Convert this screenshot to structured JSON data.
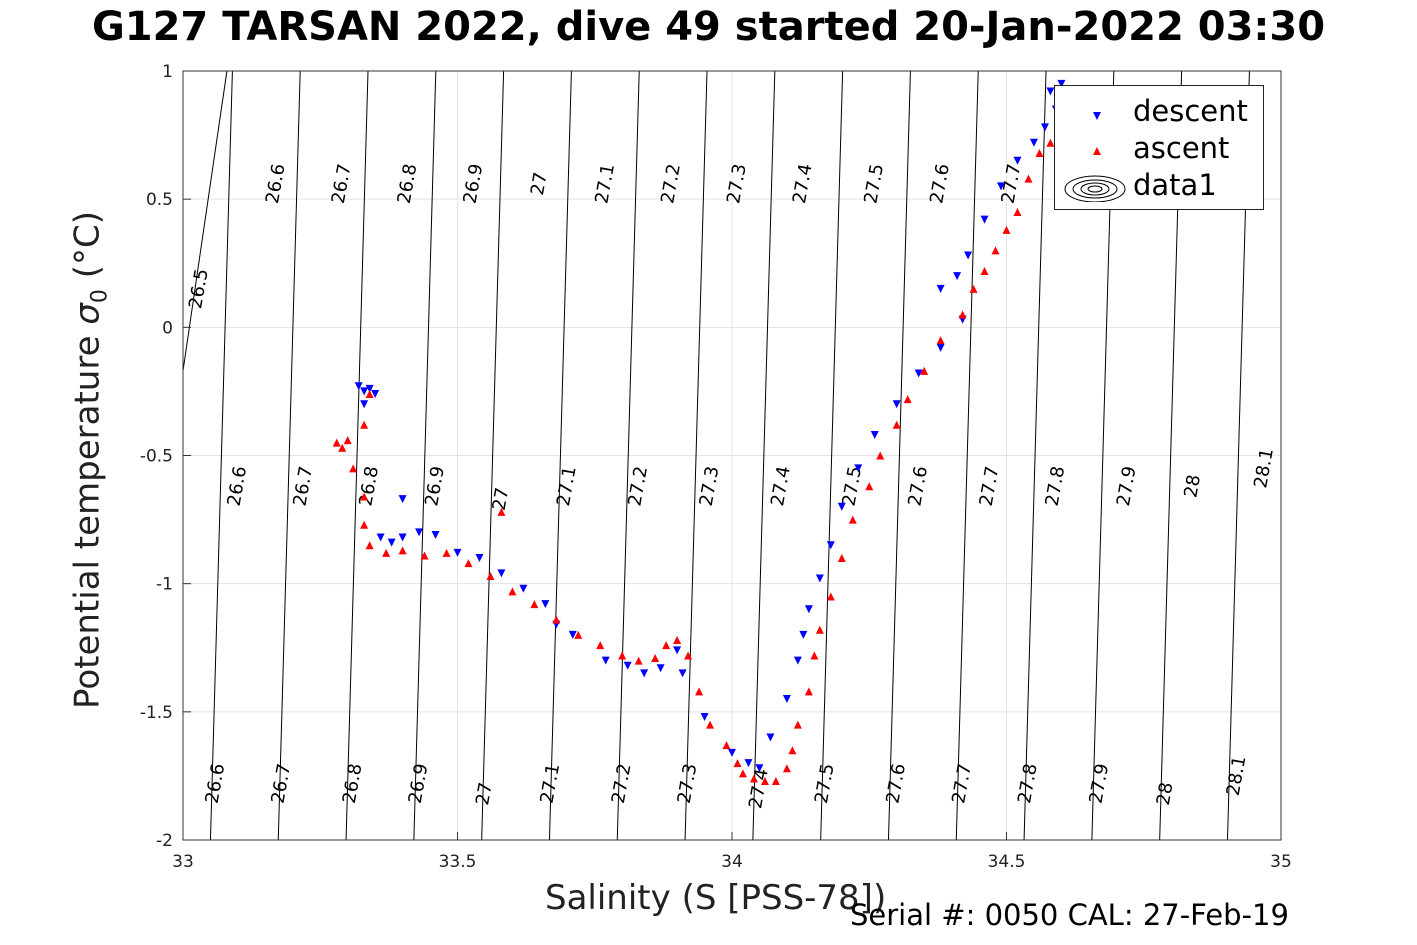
{
  "title": "G127 TARSAN 2022, dive 49 started 20-Jan-2022 03:30",
  "footer": "Serial #: 0050  CAL: 27-Feb-19",
  "chart_data": {
    "type": "scatter",
    "xlabel": "Salinity (S [PSS-78])",
    "ylabel_main": "Potential temperature ",
    "ylabel_sigma": "σ",
    "ylabel_sub": "0",
    "ylabel_unit": " (°C)",
    "xlim": [
      33,
      35
    ],
    "ylim": [
      -2,
      1
    ],
    "xticks": [
      "33",
      "33.5",
      "34",
      "34.5",
      "35"
    ],
    "yticks": [
      "-2",
      "-1.5",
      "-1",
      "-0.5",
      "0",
      "0.5",
      "1"
    ],
    "grid": true,
    "legend_position": "top-right",
    "legend": [
      {
        "label": "descent",
        "color": "#0000ff",
        "marker": "triangle-down"
      },
      {
        "label": "ascent",
        "color": "#ff0000",
        "marker": "triangle-up"
      },
      {
        "label": "data1",
        "color": "#000000",
        "marker": "contour"
      }
    ],
    "contour_levels": [
      "26.5",
      "26.6",
      "26.7",
      "26.8",
      "26.9",
      "27",
      "27.1",
      "27.2",
      "27.3",
      "27.4",
      "27.5",
      "27.6",
      "27.7",
      "27.8",
      "27.9",
      "28",
      "28.1"
    ],
    "contour_labels": [
      {
        "text": "26.5",
        "x": 33.03,
        "y": 0.15
      },
      {
        "text": "26.6",
        "x": 33.17,
        "y": 0.56
      },
      {
        "text": "26.7",
        "x": 33.29,
        "y": 0.56
      },
      {
        "text": "26.8",
        "x": 33.41,
        "y": 0.56
      },
      {
        "text": "26.9",
        "x": 33.53,
        "y": 0.56
      },
      {
        "text": "27",
        "x": 33.65,
        "y": 0.56
      },
      {
        "text": "27.1",
        "x": 33.77,
        "y": 0.56
      },
      {
        "text": "27.2",
        "x": 33.89,
        "y": 0.56
      },
      {
        "text": "27.3",
        "x": 34.01,
        "y": 0.56
      },
      {
        "text": "27.4",
        "x": 34.13,
        "y": 0.56
      },
      {
        "text": "27.5",
        "x": 34.26,
        "y": 0.56
      },
      {
        "text": "27.6",
        "x": 34.38,
        "y": 0.56
      },
      {
        "text": "27.7",
        "x": 34.51,
        "y": 0.56
      },
      {
        "text": "26.6",
        "x": 33.1,
        "y": -0.62
      },
      {
        "text": "26.7",
        "x": 33.22,
        "y": -0.62
      },
      {
        "text": "26.8",
        "x": 33.34,
        "y": -0.62
      },
      {
        "text": "26.9",
        "x": 33.46,
        "y": -0.62
      },
      {
        "text": "27",
        "x": 33.58,
        "y": -0.67
      },
      {
        "text": "27.1",
        "x": 33.7,
        "y": -0.62
      },
      {
        "text": "27.2",
        "x": 33.83,
        "y": -0.62
      },
      {
        "text": "27.3",
        "x": 33.96,
        "y": -0.62
      },
      {
        "text": "27.4",
        "x": 34.09,
        "y": -0.62
      },
      {
        "text": "27.5",
        "x": 34.22,
        "y": -0.62
      },
      {
        "text": "27.6",
        "x": 34.34,
        "y": -0.62
      },
      {
        "text": "27.7",
        "x": 34.47,
        "y": -0.62
      },
      {
        "text": "27.8",
        "x": 34.59,
        "y": -0.62
      },
      {
        "text": "27.9",
        "x": 34.72,
        "y": -0.62
      },
      {
        "text": "28",
        "x": 34.84,
        "y": -0.62
      },
      {
        "text": "28.1",
        "x": 34.97,
        "y": -0.55
      },
      {
        "text": "26.6",
        "x": 33.06,
        "y": -1.78
      },
      {
        "text": "26.7",
        "x": 33.18,
        "y": -1.78
      },
      {
        "text": "26.8",
        "x": 33.31,
        "y": -1.78
      },
      {
        "text": "26.9",
        "x": 33.43,
        "y": -1.78
      },
      {
        "text": "27",
        "x": 33.55,
        "y": -1.82
      },
      {
        "text": "27.1",
        "x": 33.67,
        "y": -1.78
      },
      {
        "text": "27.2",
        "x": 33.8,
        "y": -1.78
      },
      {
        "text": "27.3",
        "x": 33.92,
        "y": -1.78
      },
      {
        "text": "27.4",
        "x": 34.05,
        "y": -1.8
      },
      {
        "text": "27.5",
        "x": 34.17,
        "y": -1.78
      },
      {
        "text": "27.6",
        "x": 34.3,
        "y": -1.78
      },
      {
        "text": "27.7",
        "x": 34.42,
        "y": -1.78
      },
      {
        "text": "27.8",
        "x": 34.54,
        "y": -1.78
      },
      {
        "text": "27.9",
        "x": 34.67,
        "y": -1.78
      },
      {
        "text": "28",
        "x": 34.79,
        "y": -1.82
      },
      {
        "text": "28.1",
        "x": 34.92,
        "y": -1.75
      }
    ],
    "series": [
      {
        "name": "descent",
        "color": "#0000ff",
        "marker": "triangle-down",
        "points": [
          [
            33.32,
            -0.23
          ],
          [
            33.33,
            -0.25
          ],
          [
            33.34,
            -0.24
          ],
          [
            33.35,
            -0.26
          ],
          [
            33.33,
            -0.3
          ],
          [
            33.4,
            -0.67
          ],
          [
            33.36,
            -0.82
          ],
          [
            33.38,
            -0.84
          ],
          [
            33.4,
            -0.82
          ],
          [
            33.43,
            -0.8
          ],
          [
            33.46,
            -0.81
          ],
          [
            33.5,
            -0.88
          ],
          [
            33.54,
            -0.9
          ],
          [
            33.58,
            -0.96
          ],
          [
            33.62,
            -1.02
          ],
          [
            33.66,
            -1.08
          ],
          [
            33.68,
            -1.16
          ],
          [
            33.71,
            -1.2
          ],
          [
            33.77,
            -1.3
          ],
          [
            33.81,
            -1.32
          ],
          [
            33.84,
            -1.35
          ],
          [
            33.87,
            -1.33
          ],
          [
            33.9,
            -1.26
          ],
          [
            33.91,
            -1.35
          ],
          [
            33.95,
            -1.52
          ],
          [
            34.0,
            -1.66
          ],
          [
            34.03,
            -1.7
          ],
          [
            34.05,
            -1.72
          ],
          [
            34.07,
            -1.6
          ],
          [
            34.1,
            -1.45
          ],
          [
            34.12,
            -1.3
          ],
          [
            34.13,
            -1.2
          ],
          [
            34.14,
            -1.1
          ],
          [
            34.16,
            -0.98
          ],
          [
            34.18,
            -0.85
          ],
          [
            34.2,
            -0.7
          ],
          [
            34.23,
            -0.55
          ],
          [
            34.26,
            -0.42
          ],
          [
            34.3,
            -0.3
          ],
          [
            34.34,
            -0.18
          ],
          [
            34.38,
            -0.08
          ],
          [
            34.42,
            0.03
          ],
          [
            34.38,
            0.15
          ],
          [
            34.41,
            0.2
          ],
          [
            34.43,
            0.28
          ],
          [
            34.46,
            0.42
          ],
          [
            34.49,
            0.55
          ],
          [
            34.52,
            0.65
          ],
          [
            34.55,
            0.72
          ],
          [
            34.57,
            0.78
          ],
          [
            34.59,
            0.85
          ],
          [
            34.58,
            0.92
          ],
          [
            34.6,
            0.95
          ],
          [
            34.62,
            0.88
          ],
          [
            34.6,
            0.82
          ],
          [
            34.62,
            0.75
          ]
        ]
      },
      {
        "name": "ascent",
        "color": "#ff0000",
        "marker": "triangle-up",
        "points": [
          [
            33.28,
            -0.45
          ],
          [
            33.29,
            -0.47
          ],
          [
            33.3,
            -0.44
          ],
          [
            33.31,
            -0.55
          ],
          [
            33.33,
            -0.38
          ],
          [
            33.34,
            -0.26
          ],
          [
            33.33,
            -0.66
          ],
          [
            33.33,
            -0.77
          ],
          [
            33.34,
            -0.85
          ],
          [
            33.37,
            -0.88
          ],
          [
            33.4,
            -0.87
          ],
          [
            33.44,
            -0.89
          ],
          [
            33.48,
            -0.88
          ],
          [
            33.52,
            -0.92
          ],
          [
            33.56,
            -0.97
          ],
          [
            33.58,
            -0.72
          ],
          [
            33.6,
            -1.03
          ],
          [
            33.64,
            -1.08
          ],
          [
            33.68,
            -1.14
          ],
          [
            33.72,
            -1.2
          ],
          [
            33.76,
            -1.24
          ],
          [
            33.8,
            -1.28
          ],
          [
            33.83,
            -1.3
          ],
          [
            33.86,
            -1.29
          ],
          [
            33.88,
            -1.24
          ],
          [
            33.9,
            -1.22
          ],
          [
            33.92,
            -1.28
          ],
          [
            33.94,
            -1.42
          ],
          [
            33.96,
            -1.55
          ],
          [
            33.99,
            -1.63
          ],
          [
            34.01,
            -1.7
          ],
          [
            34.02,
            -1.74
          ],
          [
            34.04,
            -1.76
          ],
          [
            34.06,
            -1.77
          ],
          [
            34.08,
            -1.77
          ],
          [
            34.1,
            -1.72
          ],
          [
            34.11,
            -1.65
          ],
          [
            34.12,
            -1.55
          ],
          [
            34.14,
            -1.42
          ],
          [
            34.15,
            -1.28
          ],
          [
            34.16,
            -1.18
          ],
          [
            34.18,
            -1.05
          ],
          [
            34.2,
            -0.9
          ],
          [
            34.22,
            -0.75
          ],
          [
            34.25,
            -0.62
          ],
          [
            34.27,
            -0.5
          ],
          [
            34.3,
            -0.38
          ],
          [
            34.32,
            -0.28
          ],
          [
            34.35,
            -0.17
          ],
          [
            34.38,
            -0.05
          ],
          [
            34.42,
            0.05
          ],
          [
            34.44,
            0.15
          ],
          [
            34.46,
            0.22
          ],
          [
            34.48,
            0.3
          ],
          [
            34.5,
            0.38
          ],
          [
            34.52,
            0.45
          ],
          [
            34.54,
            0.58
          ],
          [
            34.56,
            0.68
          ],
          [
            34.58,
            0.72
          ],
          [
            34.6,
            0.66
          ],
          [
            34.62,
            0.62
          ],
          [
            34.61,
            0.77
          ],
          [
            34.6,
            0.9
          ]
        ]
      }
    ]
  }
}
